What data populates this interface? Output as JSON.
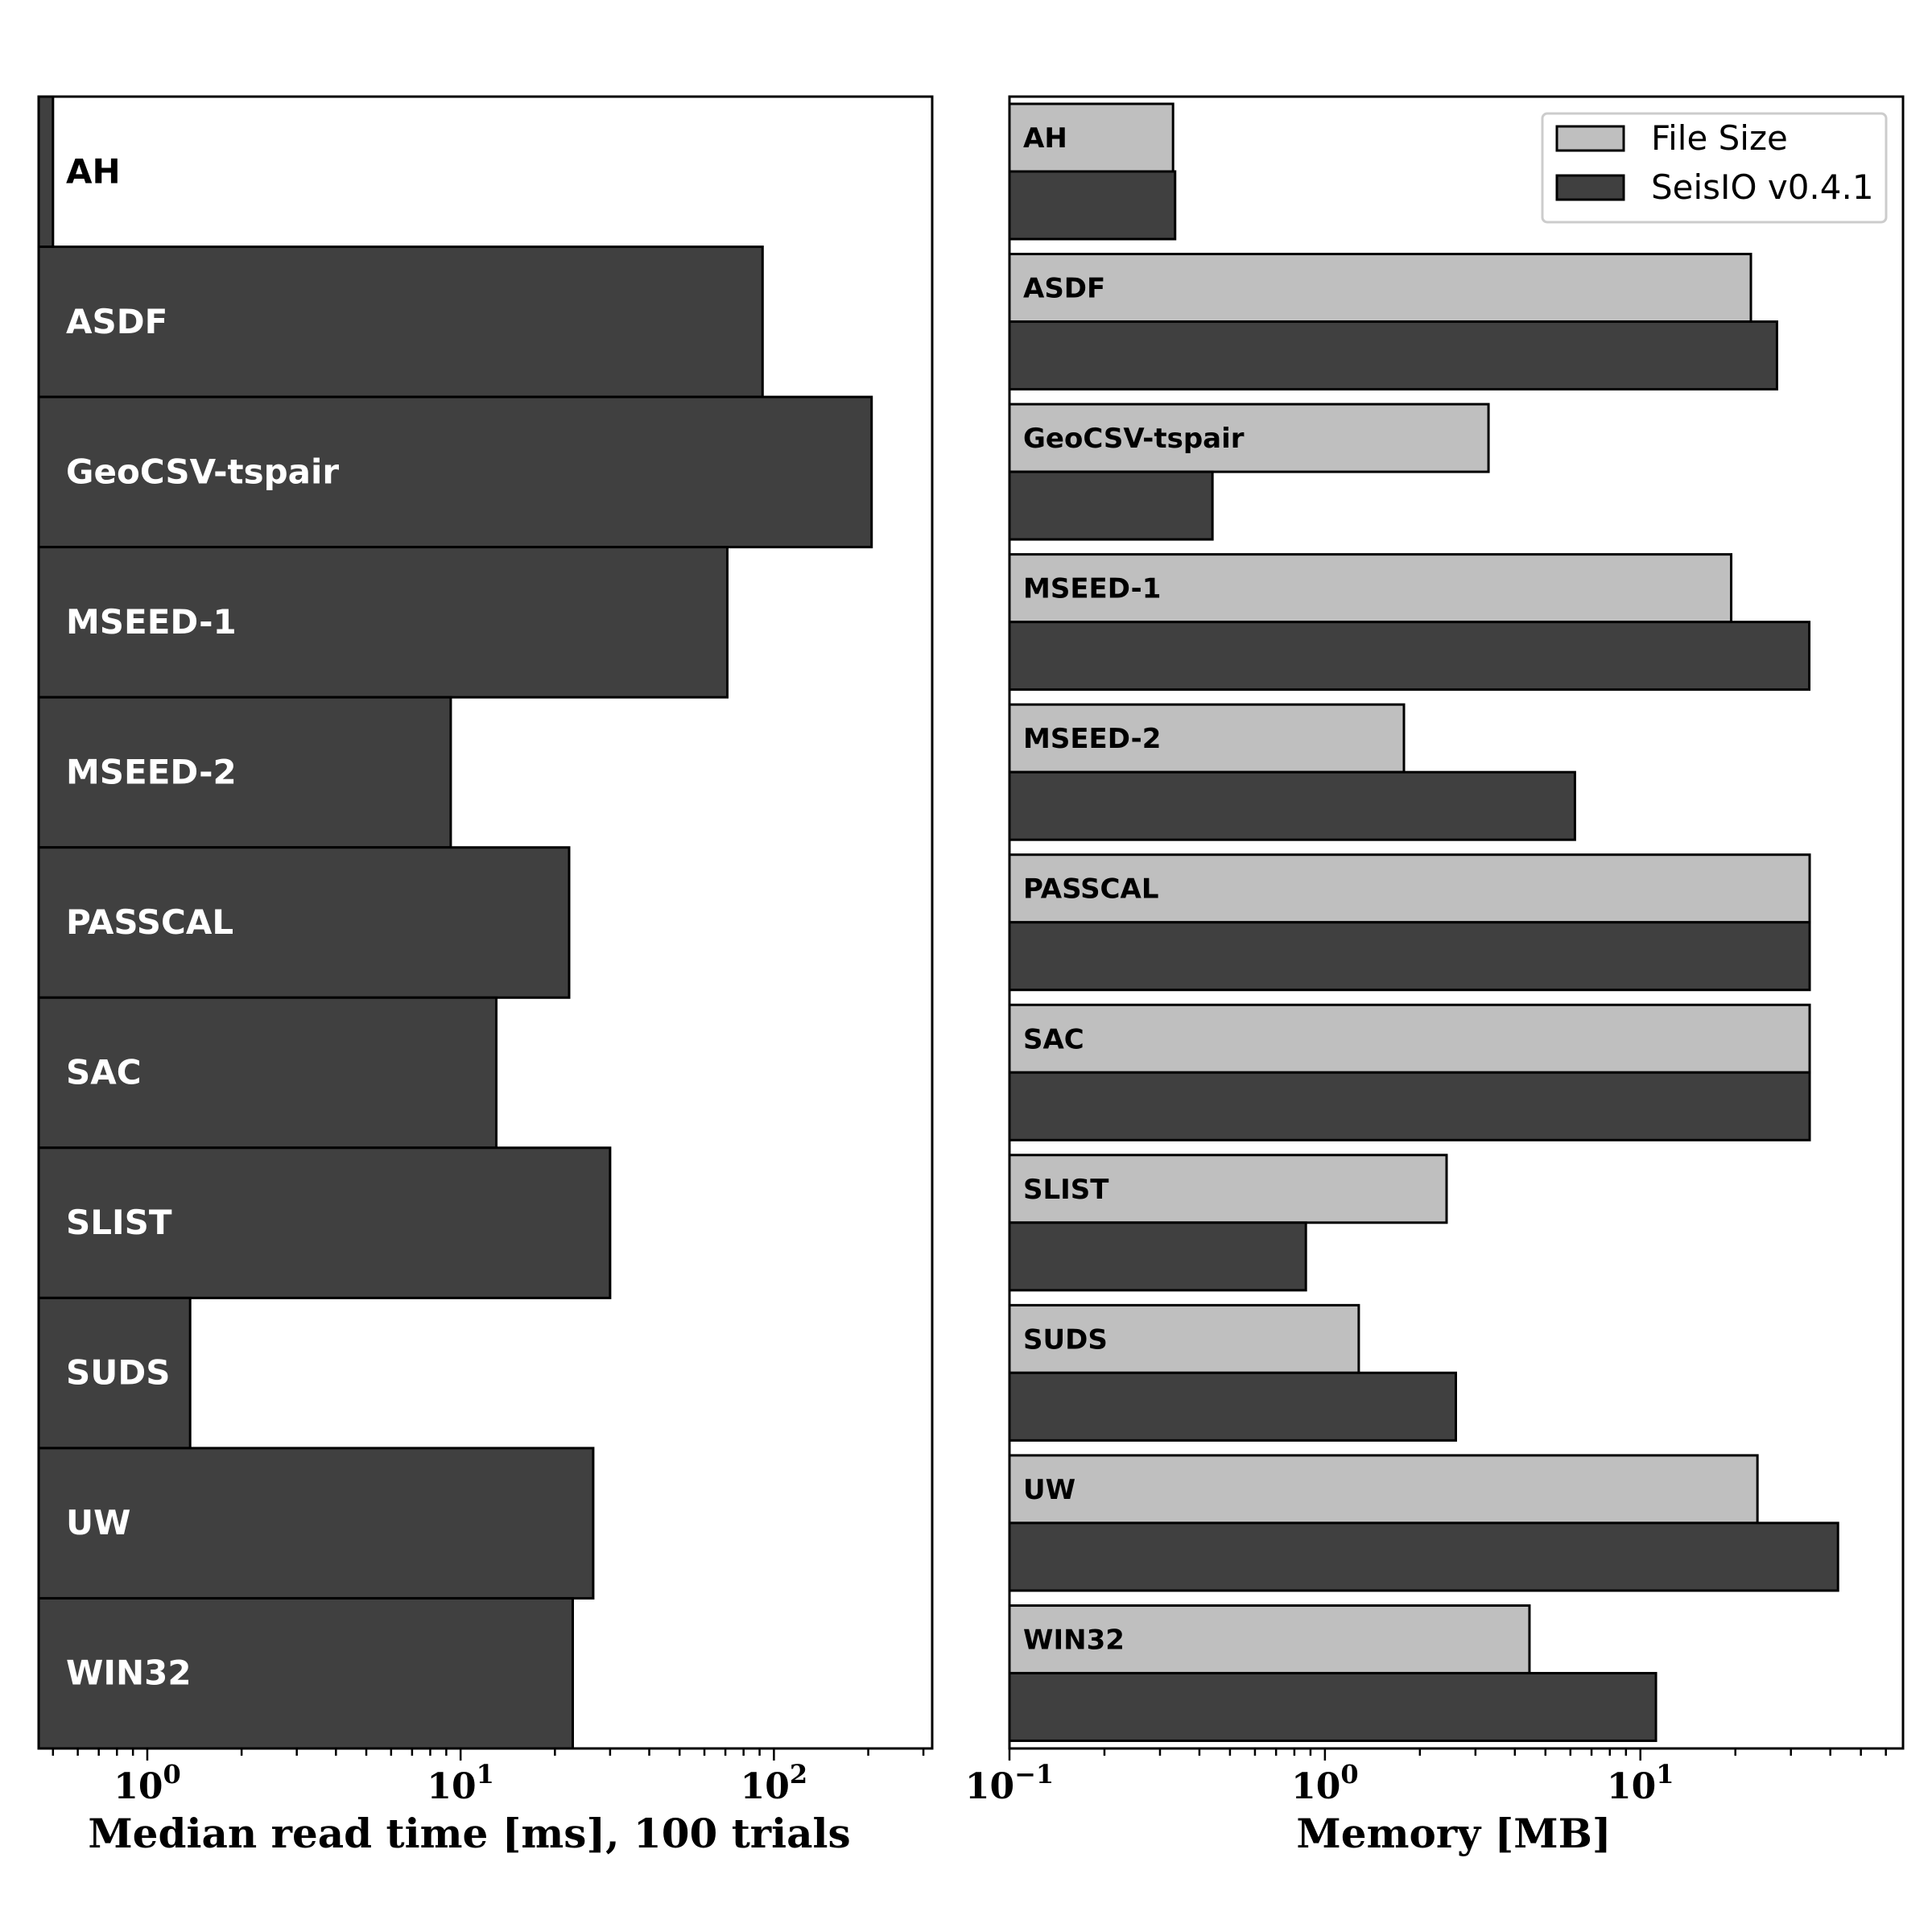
{
  "chart_data": [
    {
      "type": "bar",
      "orientation": "horizontal",
      "xscale": "log",
      "title": "",
      "xlabel": "Median read time [ms], 100 trials",
      "xlim": [
        0.45,
        320
      ],
      "xticks": [
        {
          "value": 1,
          "base": "10",
          "exp": "0"
        },
        {
          "value": 10,
          "base": "10",
          "exp": "1"
        },
        {
          "value": 100,
          "base": "10",
          "exp": "2"
        }
      ],
      "categories": [
        "AH",
        "ASDF",
        "GeoCSV-tspair",
        "MSEED-1",
        "MSEED-2",
        "PASSCAL",
        "SAC",
        "SLIST",
        "SUDS",
        "UW",
        "WIN32"
      ],
      "values": [
        0.5,
        92,
        205,
        71,
        9.3,
        22.2,
        13,
        30,
        1.37,
        26.5,
        22.8
      ],
      "bar_color": "#404040",
      "label_colors": [
        "#000000",
        "#ffffff",
        "#ffffff",
        "#ffffff",
        "#ffffff",
        "#ffffff",
        "#ffffff",
        "#ffffff",
        "#ffffff",
        "#ffffff",
        "#ffffff"
      ]
    },
    {
      "type": "bar",
      "orientation": "horizontal",
      "xscale": "log",
      "title": "",
      "xlabel": "Memory [MB]",
      "xlim": [
        0.1,
        68
      ],
      "xticks": [
        {
          "value": 0.1,
          "base": "10",
          "exp": "−1"
        },
        {
          "value": 1,
          "base": "10",
          "exp": "0"
        },
        {
          "value": 10,
          "base": "10",
          "exp": "1"
        }
      ],
      "categories": [
        "AH",
        "ASDF",
        "GeoCSV-tspair",
        "MSEED-1",
        "MSEED-2",
        "PASSCAL",
        "SAC",
        "SLIST",
        "SUDS",
        "UW",
        "WIN32"
      ],
      "series": [
        {
          "name": "File Size",
          "color": "#bfbfbf",
          "values": [
            0.33,
            22.4,
            3.3,
            19.4,
            1.78,
            34.4,
            34.4,
            2.43,
            1.28,
            23.5,
            4.45
          ]
        },
        {
          "name": "SeisIO v0.4.1",
          "color": "#404040",
          "values": [
            0.335,
            27.1,
            0.44,
            34.3,
            6.2,
            34.4,
            34.4,
            0.87,
            2.6,
            42.3,
            11.2
          ]
        }
      ],
      "legend": "top-right"
    }
  ]
}
